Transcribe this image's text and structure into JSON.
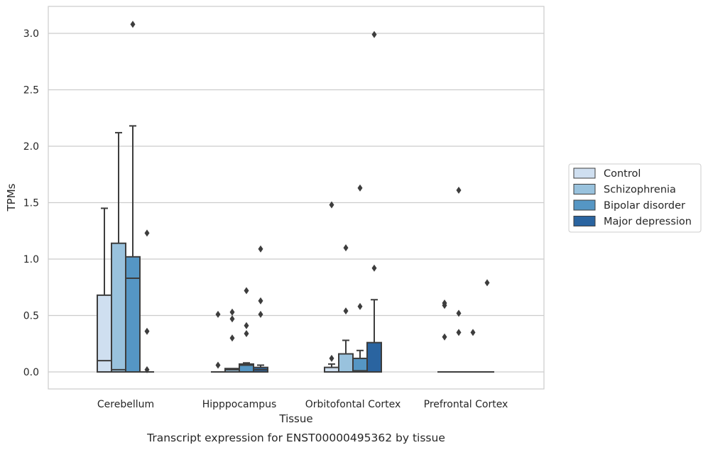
{
  "chart_data": {
    "type": "box",
    "xlabel": "Tissue",
    "ylabel": "TPMs",
    "caption": "Transcript expression for ENST00000495362 by tissue",
    "ylim": [
      -0.15,
      3.25
    ],
    "yticks": [
      0.0,
      0.5,
      1.0,
      1.5,
      2.0,
      2.5,
      3.0
    ],
    "ytick_labels": [
      "0.0",
      "0.5",
      "1.0",
      "1.5",
      "2.0",
      "2.5",
      "3.0"
    ],
    "categories": [
      "Cerebellum",
      "Hipppocampus",
      "Orbitofontal Cortex",
      "Prefrontal Cortex"
    ],
    "grid": "horizontal",
    "legend_position": "right-outside",
    "series": [
      {
        "name": "Control",
        "color": "#cfdff0",
        "boxes": [
          {
            "q1": 0.0,
            "median": 0.1,
            "q3": 0.68,
            "whisker_low": 0.0,
            "whisker_high": 1.45,
            "outliers": []
          },
          {
            "q1": 0.0,
            "median": 0.0,
            "q3": 0.0,
            "whisker_low": 0.0,
            "whisker_high": 0.0,
            "outliers": [
              0.06,
              0.51
            ]
          },
          {
            "q1": 0.0,
            "median": 0.0,
            "q3": 0.04,
            "whisker_low": 0.0,
            "whisker_high": 0.07,
            "outliers": [
              0.12,
              1.48
            ]
          },
          {
            "q1": 0.0,
            "median": 0.0,
            "q3": 0.0,
            "whisker_low": 0.0,
            "whisker_high": 0.0,
            "outliers": [
              0.31,
              0.59,
              0.61
            ]
          }
        ]
      },
      {
        "name": "Schizophrenia",
        "color": "#99c2dd",
        "boxes": [
          {
            "q1": 0.0,
            "median": 0.02,
            "q3": 1.14,
            "whisker_low": 0.0,
            "whisker_high": 2.12,
            "outliers": []
          },
          {
            "q1": 0.0,
            "median": 0.02,
            "q3": 0.03,
            "whisker_low": 0.0,
            "whisker_high": 0.03,
            "outliers": [
              0.3,
              0.47,
              0.53
            ]
          },
          {
            "q1": 0.0,
            "median": 0.0,
            "q3": 0.16,
            "whisker_low": 0.0,
            "whisker_high": 0.28,
            "outliers": [
              0.54,
              1.1
            ]
          },
          {
            "q1": 0.0,
            "median": 0.0,
            "q3": 0.0,
            "whisker_low": 0.0,
            "whisker_high": 0.0,
            "outliers": [
              0.35,
              0.52,
              1.61
            ]
          }
        ]
      },
      {
        "name": "Bipolar disorder",
        "color": "#5596c4",
        "boxes": [
          {
            "q1": 0.0,
            "median": 0.83,
            "q3": 1.02,
            "whisker_low": 0.0,
            "whisker_high": 2.18,
            "outliers": [
              3.08
            ]
          },
          {
            "q1": 0.0,
            "median": 0.06,
            "q3": 0.07,
            "whisker_low": 0.0,
            "whisker_high": 0.08,
            "outliers": [
              0.34,
              0.41,
              0.72
            ]
          },
          {
            "q1": 0.0,
            "median": 0.01,
            "q3": 0.12,
            "whisker_low": 0.0,
            "whisker_high": 0.19,
            "outliers": [
              0.58,
              1.63
            ]
          },
          {
            "q1": 0.0,
            "median": 0.0,
            "q3": 0.0,
            "whisker_low": 0.0,
            "whisker_high": 0.0,
            "outliers": [
              0.35
            ]
          }
        ]
      },
      {
        "name": "Major depression",
        "color": "#2a64a0",
        "boxes": [
          {
            "q1": 0.0,
            "median": 0.0,
            "q3": 0.0,
            "whisker_low": 0.0,
            "whisker_high": 0.0,
            "outliers": [
              0.02,
              0.36,
              1.23
            ]
          },
          {
            "q1": 0.0,
            "median": 0.02,
            "q3": 0.04,
            "whisker_low": 0.0,
            "whisker_high": 0.06,
            "outliers": [
              0.51,
              0.63,
              1.09
            ]
          },
          {
            "q1": 0.0,
            "median": 0.0,
            "q3": 0.26,
            "whisker_low": 0.0,
            "whisker_high": 0.64,
            "outliers": [
              0.92,
              2.99
            ]
          },
          {
            "q1": 0.0,
            "median": 0.0,
            "q3": 0.0,
            "whisker_low": 0.0,
            "whisker_high": 0.0,
            "outliers": [
              0.79
            ]
          }
        ]
      }
    ]
  }
}
